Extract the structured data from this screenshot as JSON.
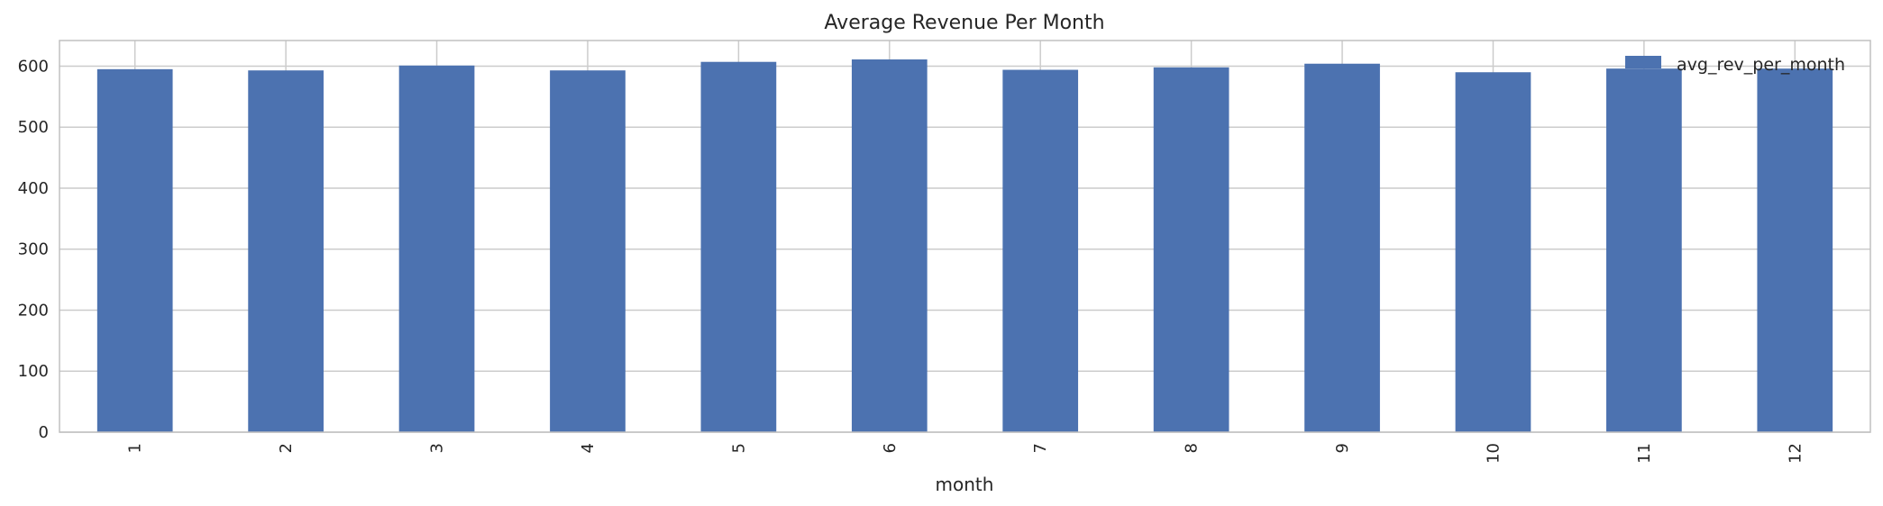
{
  "chart_data": {
    "type": "bar",
    "title": "Average Revenue Per Month",
    "xlabel": "month",
    "ylabel": "",
    "categories": [
      "1",
      "2",
      "3",
      "4",
      "5",
      "6",
      "7",
      "8",
      "9",
      "10",
      "11",
      "12"
    ],
    "series": [
      {
        "name": "avg_rev_per_month",
        "color": "#4c72b0",
        "values": [
          595,
          593,
          601,
          593,
          607,
          611,
          594,
          598,
          604,
          590,
          596,
          596
        ]
      }
    ],
    "yticks": [
      0,
      100,
      200,
      300,
      400,
      500,
      600
    ],
    "ylim": [
      0,
      642
    ],
    "grid": true,
    "legend_position": "top-right"
  }
}
